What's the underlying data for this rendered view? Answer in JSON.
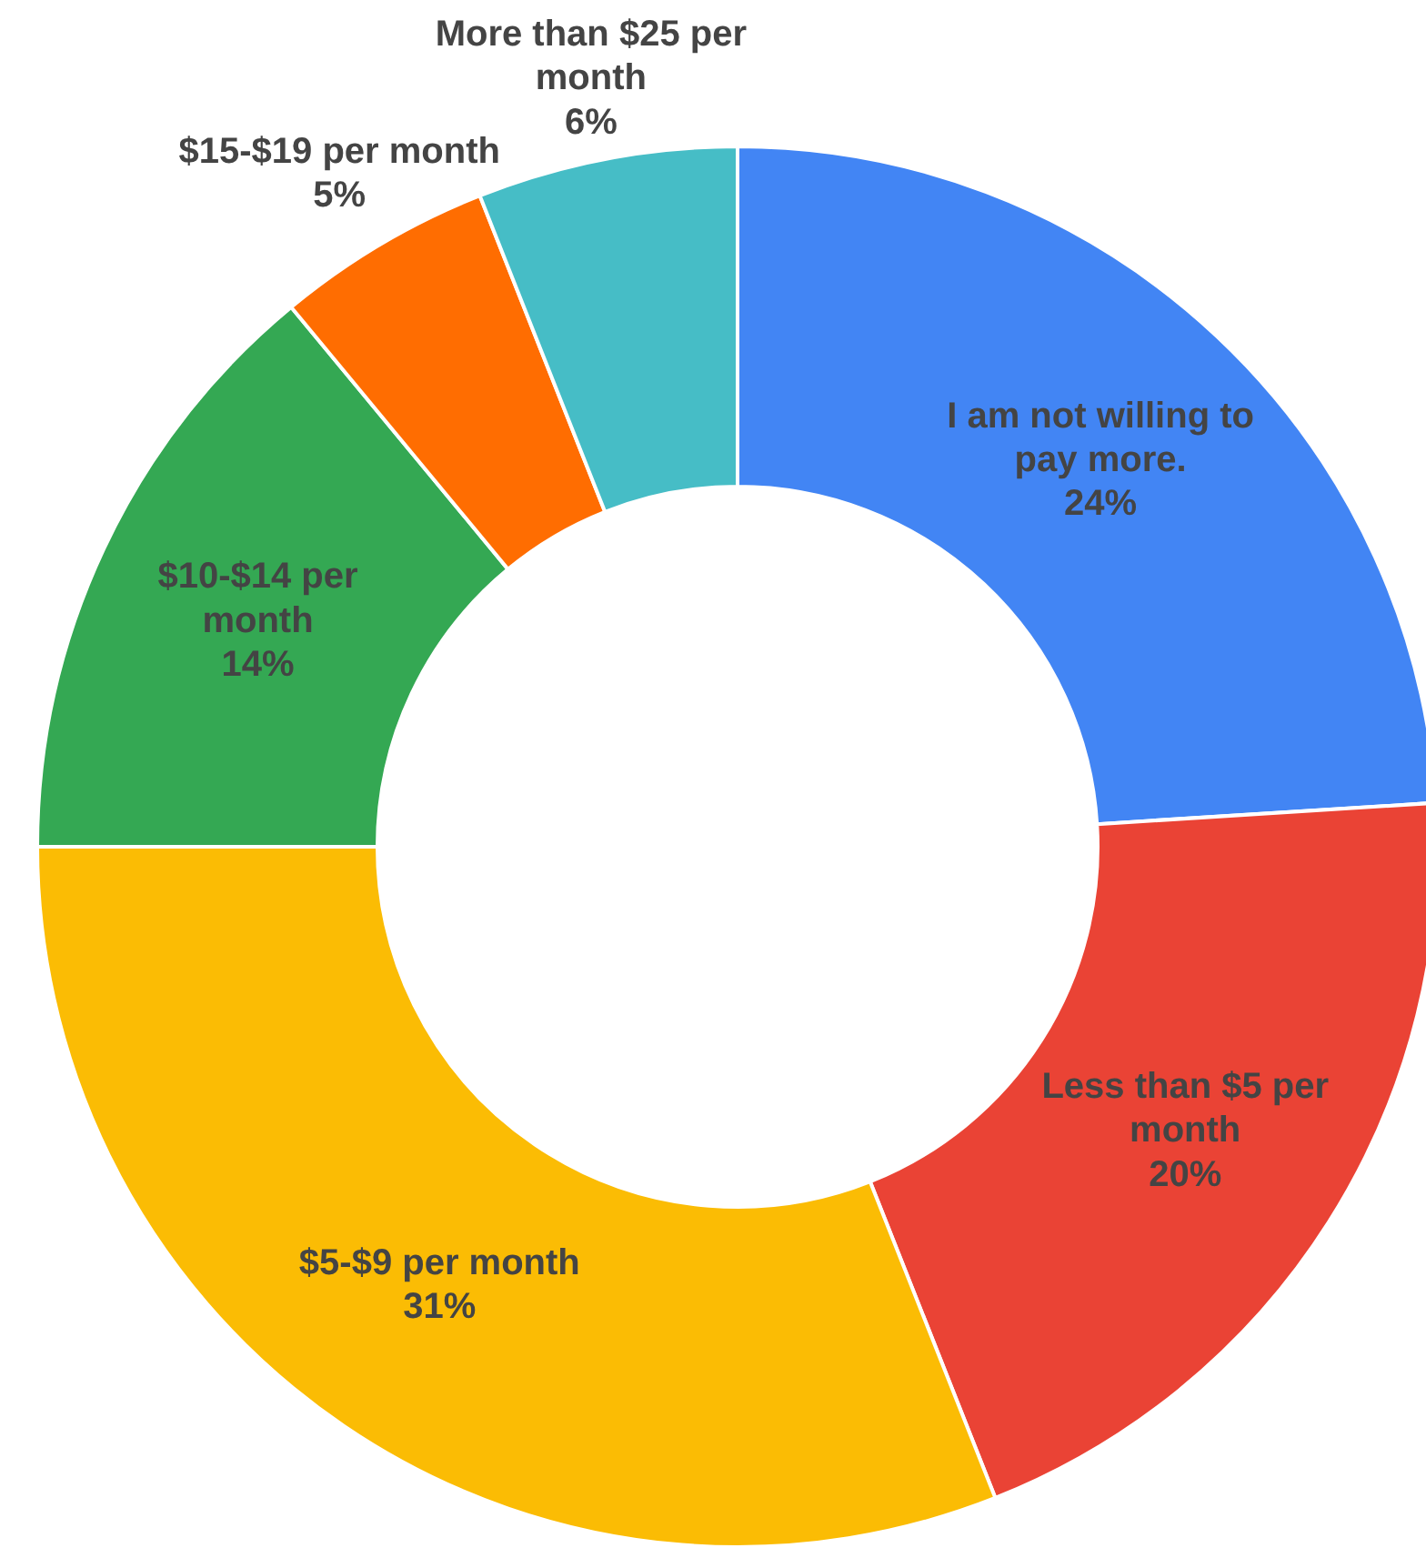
{
  "chart_data": {
    "type": "donut",
    "categories": [
      "I am not willing to pay more.",
      "Less than $5 per month",
      "$5-$9 per month",
      "$10-$14 per month",
      "$15-$19 per month",
      "More than $25 per month"
    ],
    "values": [
      24,
      20,
      31,
      14,
      5,
      6
    ],
    "colors": [
      "#4285f4",
      "#ea4335",
      "#fbbc04",
      "#34a853",
      "#ff6d01",
      "#46bdc6"
    ],
    "value_labels": [
      "24%",
      "20%",
      "31%",
      "14%",
      "5%",
      "6%"
    ]
  }
}
